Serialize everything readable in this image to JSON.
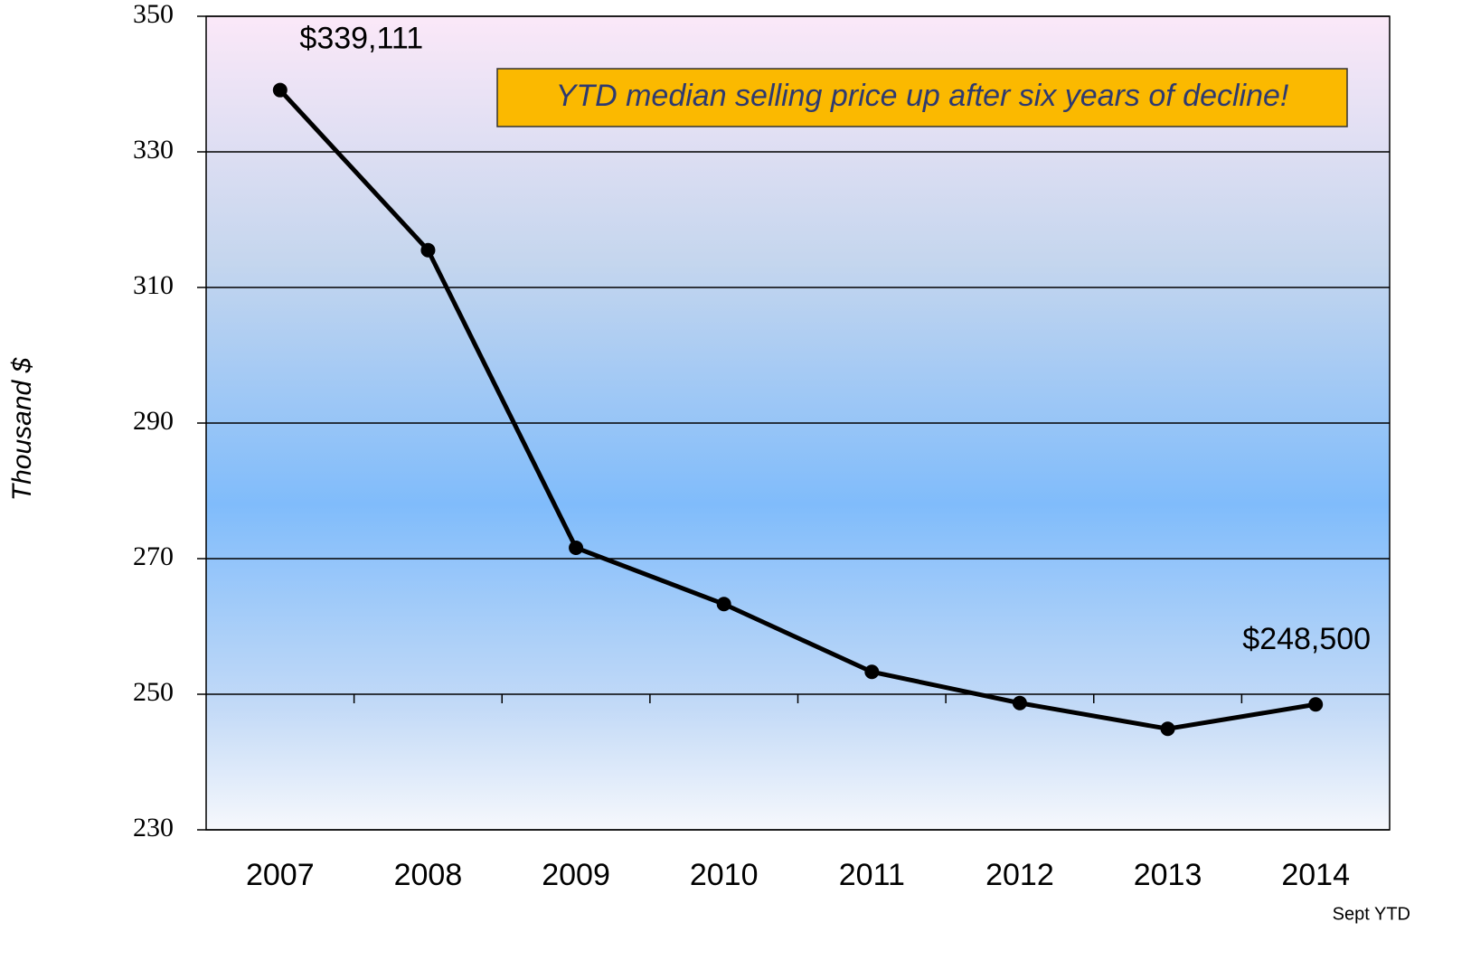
{
  "chart_data": {
    "type": "line",
    "y_label": "Thousand $",
    "annotation": "YTD median selling price up after six years of decline!",
    "note": "Sept YTD",
    "categories": [
      "2007",
      "2008",
      "2009",
      "2010",
      "2011",
      "2012",
      "2013",
      "2014"
    ],
    "series": [
      {
        "name": "Median selling price",
        "color": "#000000",
        "values": [
          339.111,
          315.5,
          271.6,
          263.3,
          253.3,
          248.7,
          244.9,
          248.5
        ],
        "value_labels": [
          "$339,111",
          null,
          null,
          null,
          null,
          null,
          null,
          "$248,500"
        ]
      }
    ],
    "ylim": [
      230,
      350
    ],
    "yticks": [
      230,
      250,
      270,
      290,
      310,
      330,
      350
    ],
    "grid": true
  }
}
